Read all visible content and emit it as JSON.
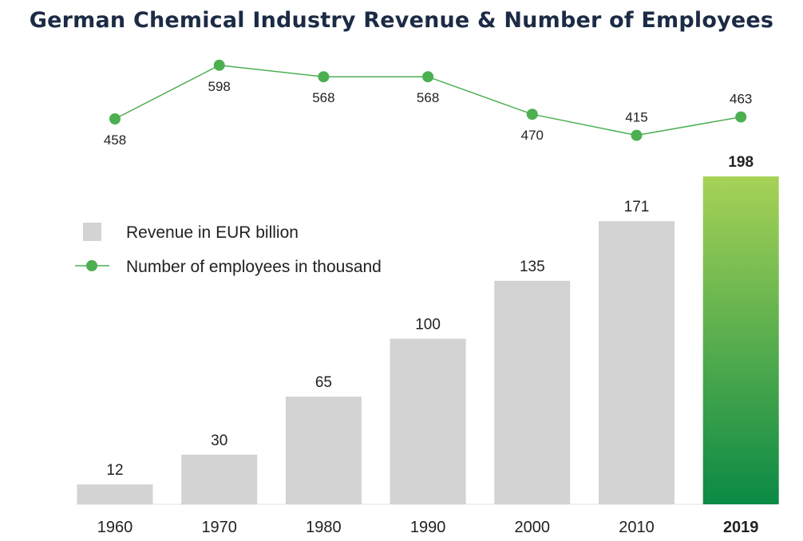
{
  "chart_data": {
    "type": "bar",
    "title": "German Chemical Industry Revenue & Number of Employees",
    "categories": [
      "1960",
      "1970",
      "1980",
      "1990",
      "2000",
      "2010",
      "2019"
    ],
    "highlight_category": "2019",
    "series": [
      {
        "name": "Revenue in EUR billion",
        "type": "bar",
        "values": [
          12,
          30,
          65,
          100,
          135,
          171,
          198
        ],
        "color": "#d3d3d3",
        "highlight_color_top": "#a7d256",
        "highlight_color_bottom": "#0a8a45"
      },
      {
        "name": "Number of employees in thousand",
        "type": "line",
        "values": [
          458,
          598,
          568,
          568,
          470,
          415,
          463
        ],
        "color": "#4caf50"
      }
    ],
    "legend": {
      "placement": "top-left"
    },
    "grid": false
  }
}
